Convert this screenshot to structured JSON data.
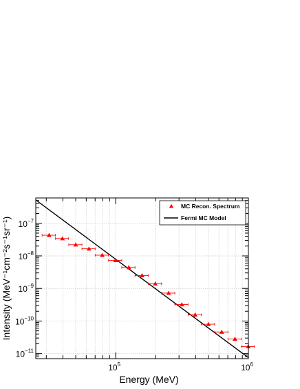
{
  "chart_data": {
    "type": "scatter",
    "title": "",
    "xlabel": "Energy (MeV)",
    "ylabel": "Intensity (MeV⁻¹cm⁻²s⁻¹sr⁻¹)",
    "x_scale": "log",
    "y_scale": "log",
    "xlim": [
      25000,
      1000000
    ],
    "ylim": [
      7e-12,
      6e-07
    ],
    "grid": true,
    "legend_placement": "top-right",
    "x_tick_labels": [
      {
        "value": 100000,
        "mantissa": "10",
        "exponent": "5"
      },
      {
        "value": 1000000,
        "mantissa": "10",
        "exponent": "6"
      }
    ],
    "y_tick_labels": [
      {
        "value": 1e-07,
        "mantissa": "10",
        "exponent": "−7"
      },
      {
        "value": 1e-08,
        "mantissa": "10",
        "exponent": "−8"
      },
      {
        "value": 1e-09,
        "mantissa": "10",
        "exponent": "−9"
      },
      {
        "value": 1e-10,
        "mantissa": "10",
        "exponent": "−10"
      },
      {
        "value": 1e-11,
        "mantissa": "10",
        "exponent": "−11"
      }
    ],
    "series": [
      {
        "name": "MC Recon. Spectrum",
        "kind": "points",
        "marker": "triangle",
        "color": "#ff0000",
        "points": [
          {
            "x": 31500,
            "y": 4.3e-08,
            "xerr": [
              3600,
              3600
            ]
          },
          {
            "x": 39700,
            "y": 3.4e-08,
            "xerr": [
              4500,
              4500
            ]
          },
          {
            "x": 50000,
            "y": 2.2e-08,
            "xerr": [
              5700,
              5700
            ]
          },
          {
            "x": 62900,
            "y": 1.65e-08,
            "xerr": [
              7200,
              7200
            ]
          },
          {
            "x": 79200,
            "y": 1.05e-08,
            "xerr": [
              9100,
              9100
            ]
          },
          {
            "x": 99700,
            "y": 7.3e-09,
            "xerr": [
              11400,
              11400
            ]
          },
          {
            "x": 125500,
            "y": 4.4e-09,
            "xerr": [
              14400,
              14400
            ]
          },
          {
            "x": 158000,
            "y": 2.5e-09,
            "xerr": [
              18100,
              18100
            ]
          },
          {
            "x": 198900,
            "y": 1.4e-09,
            "xerr": [
              22800,
              22800
            ]
          },
          {
            "x": 250400,
            "y": 7.2e-10,
            "xerr": [
              28700,
              28700
            ]
          },
          {
            "x": 315300,
            "y": 3.2e-10,
            "xerr": [
              36100,
              36100
            ]
          },
          {
            "x": 397000,
            "y": 1.55e-10,
            "xerr": [
              45500,
              45500
            ]
          },
          {
            "x": 500000,
            "y": 8e-11,
            "xerr": [
              57300,
              57300
            ]
          },
          {
            "x": 629400,
            "y": 4.6e-11,
            "xerr": [
              72100,
              72100
            ]
          },
          {
            "x": 792300,
            "y": 2.8e-11,
            "xerr": [
              90800,
              90800
            ]
          },
          {
            "x": 997500,
            "y": 1.65e-11,
            "xerr": [
              114200,
              114200
            ]
          }
        ]
      },
      {
        "name": "Fermi MC Model",
        "kind": "line",
        "color": "#000000",
        "points": [
          {
            "x": 25000,
            "y": 5.2e-07
          },
          {
            "x": 1000000,
            "y": 7.5e-12
          }
        ]
      }
    ]
  }
}
